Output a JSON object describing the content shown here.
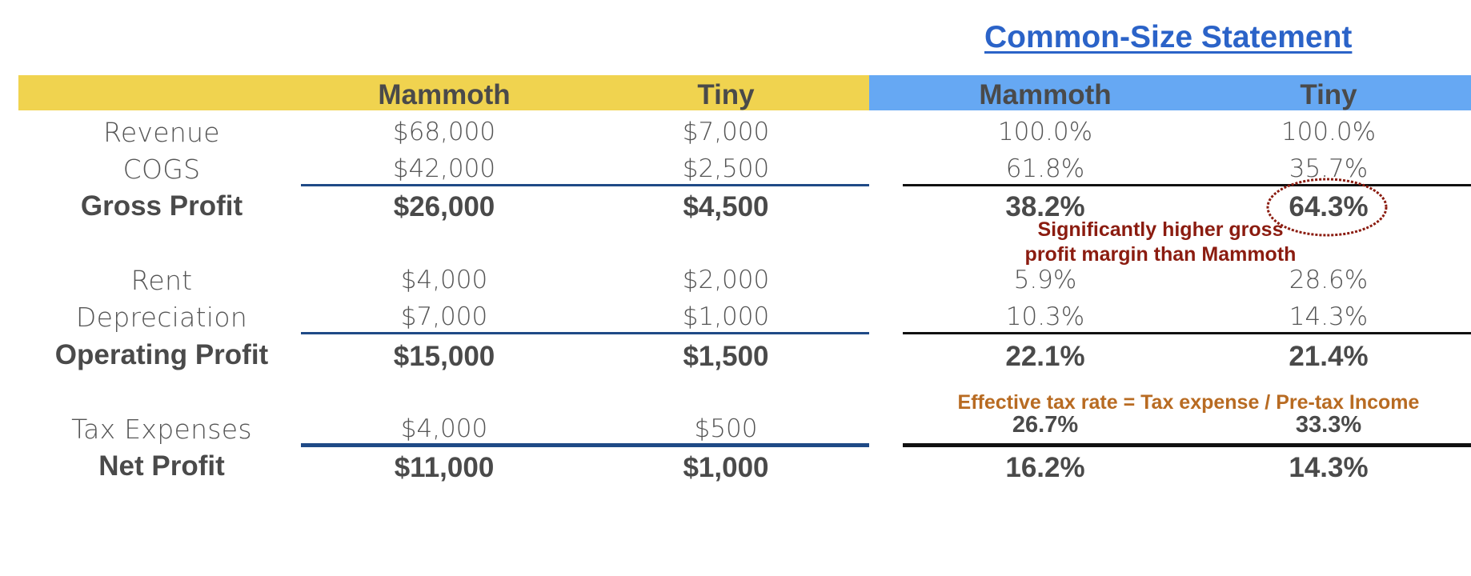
{
  "title": "Common-Size Statement",
  "headers": {
    "mammoth": "Mammoth",
    "tiny": "Tiny",
    "cs_mammoth": "Mammoth",
    "cs_tiny": "Tiny"
  },
  "rows": {
    "revenue": {
      "label": "Revenue",
      "mammoth": "$68,000",
      "tiny": "$7,000",
      "cs_mammoth": "100.0%",
      "cs_tiny": "100.0%"
    },
    "cogs": {
      "label": "COGS",
      "mammoth": "$42,000",
      "tiny": "$2,500",
      "cs_mammoth": "61.8%",
      "cs_tiny": "35.7%"
    },
    "gross_profit": {
      "label": "Gross Profit",
      "mammoth": "$26,000",
      "tiny": "$4,500",
      "cs_mammoth": "38.2%",
      "cs_tiny": "64.3%"
    },
    "rent": {
      "label": "Rent",
      "mammoth": "$4,000",
      "tiny": "$2,000",
      "cs_mammoth": "5.9%",
      "cs_tiny": "28.6%"
    },
    "depreciation": {
      "label": "Depreciation",
      "mammoth": "$7,000",
      "tiny": "$1,000",
      "cs_mammoth": "10.3%",
      "cs_tiny": "14.3%"
    },
    "operating_profit": {
      "label": "Operating Profit",
      "mammoth": "$15,000",
      "tiny": "$1,500",
      "cs_mammoth": "22.1%",
      "cs_tiny": "21.4%"
    },
    "tax": {
      "label": "Tax Expenses",
      "mammoth": "$4,000",
      "tiny": "$500",
      "cs_mammoth": "26.7%",
      "cs_tiny": "33.3%"
    },
    "net_profit": {
      "label": "Net Profit",
      "mammoth": "$11,000",
      "tiny": "$1,000",
      "cs_mammoth": "16.2%",
      "cs_tiny": "14.3%"
    }
  },
  "annotations": {
    "gross_margin_line1": "Significantly higher gross",
    "gross_margin_line2": "profit margin than Mammoth",
    "tax_rate": "Effective tax rate = Tax expense / Pre-tax Income"
  },
  "colors": {
    "header_left": "#f0d34f",
    "header_right": "#66a8f3",
    "title": "#2b63c8",
    "annotation_red": "#8b1c10",
    "annotation_orange": "#b86b22"
  }
}
